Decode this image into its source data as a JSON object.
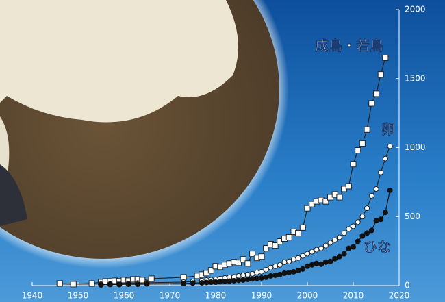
{
  "chart_data": {
    "type": "line",
    "xlim": [
      1940,
      2020
    ],
    "xticks": [
      1940,
      1950,
      1960,
      1970,
      1980,
      1990,
      2000,
      2010,
      2020
    ],
    "ylim": [
      0,
      2000
    ],
    "yticks": [
      0,
      500,
      1000,
      1500,
      2000
    ],
    "series": [
      {
        "name": "成鳥・若鳥",
        "marker": "square",
        "color": "#222222",
        "x": [
          1946,
          1949,
          1953,
          1955,
          1956,
          1957,
          1958,
          1959,
          1960,
          1961,
          1962,
          1963,
          1964,
          1966,
          1973,
          1976,
          1977,
          1978,
          1979,
          1980,
          1981,
          1982,
          1983,
          1984,
          1985,
          1986,
          1987,
          1988,
          1989,
          1990,
          1991,
          1992,
          1993,
          1994,
          1995,
          1996,
          1997,
          1998,
          1999,
          2000,
          2001,
          2002,
          2003,
          2004,
          2005,
          2006,
          2007,
          2008,
          2009,
          2010,
          2011,
          2012,
          2013,
          2014,
          2015,
          2016,
          2017
        ],
        "values": [
          15,
          10,
          15,
          25,
          30,
          30,
          35,
          30,
          40,
          35,
          45,
          45,
          40,
          50,
          60,
          70,
          80,
          90,
          110,
          140,
          135,
          150,
          160,
          170,
          165,
          190,
          160,
          230,
          200,
          210,
          270,
          300,
          290,
          320,
          340,
          350,
          390,
          380,
          420,
          560,
          590,
          610,
          620,
          610,
          640,
          660,
          640,
          700,
          720,
          880,
          980,
          1030,
          1130,
          1320,
          1390,
          1530,
          1650
        ]
      },
      {
        "name": "卵",
        "marker": "open-circle",
        "color": "#222222",
        "x": [
          1955,
          1957,
          1959,
          1961,
          1963,
          1965,
          1973,
          1975,
          1977,
          1978,
          1979,
          1980,
          1981,
          1982,
          1983,
          1984,
          1985,
          1986,
          1987,
          1988,
          1989,
          1990,
          1991,
          1992,
          1993,
          1994,
          1995,
          1996,
          1997,
          1998,
          1999,
          2000,
          2001,
          2002,
          2003,
          2004,
          2005,
          2006,
          2007,
          2008,
          2009,
          2010,
          2011,
          2012,
          2013,
          2014,
          2015,
          2016,
          2017,
          2018
        ],
        "values": [
          10,
          12,
          15,
          15,
          18,
          20,
          25,
          30,
          35,
          40,
          42,
          45,
          50,
          55,
          60,
          62,
          70,
          75,
          80,
          85,
          95,
          100,
          115,
          130,
          140,
          150,
          170,
          175,
          190,
          200,
          215,
          230,
          245,
          260,
          270,
          290,
          310,
          330,
          350,
          380,
          410,
          430,
          460,
          500,
          560,
          650,
          700,
          820,
          920,
          1010
        ]
      },
      {
        "name": "ひな",
        "marker": "filled-circle",
        "color": "#111111",
        "x": [
          1955,
          1957,
          1959,
          1961,
          1963,
          1965,
          1973,
          1975,
          1977,
          1978,
          1979,
          1980,
          1981,
          1982,
          1983,
          1984,
          1985,
          1986,
          1987,
          1988,
          1989,
          1990,
          1991,
          1992,
          1993,
          1994,
          1995,
          1996,
          1997,
          1998,
          1999,
          2000,
          2001,
          2002,
          2003,
          2004,
          2005,
          2006,
          2007,
          2008,
          2009,
          2010,
          2011,
          2012,
          2013,
          2014,
          2015,
          2016,
          2017,
          2018
        ],
        "values": [
          5,
          8,
          8,
          10,
          10,
          12,
          15,
          18,
          20,
          22,
          25,
          25,
          28,
          30,
          32,
          35,
          38,
          40,
          45,
          48,
          52,
          55,
          60,
          70,
          75,
          80,
          90,
          95,
          100,
          110,
          120,
          140,
          150,
          160,
          155,
          170,
          175,
          195,
          210,
          230,
          270,
          280,
          320,
          360,
          380,
          400,
          470,
          480,
          530,
          690
        ]
      }
    ]
  }
}
